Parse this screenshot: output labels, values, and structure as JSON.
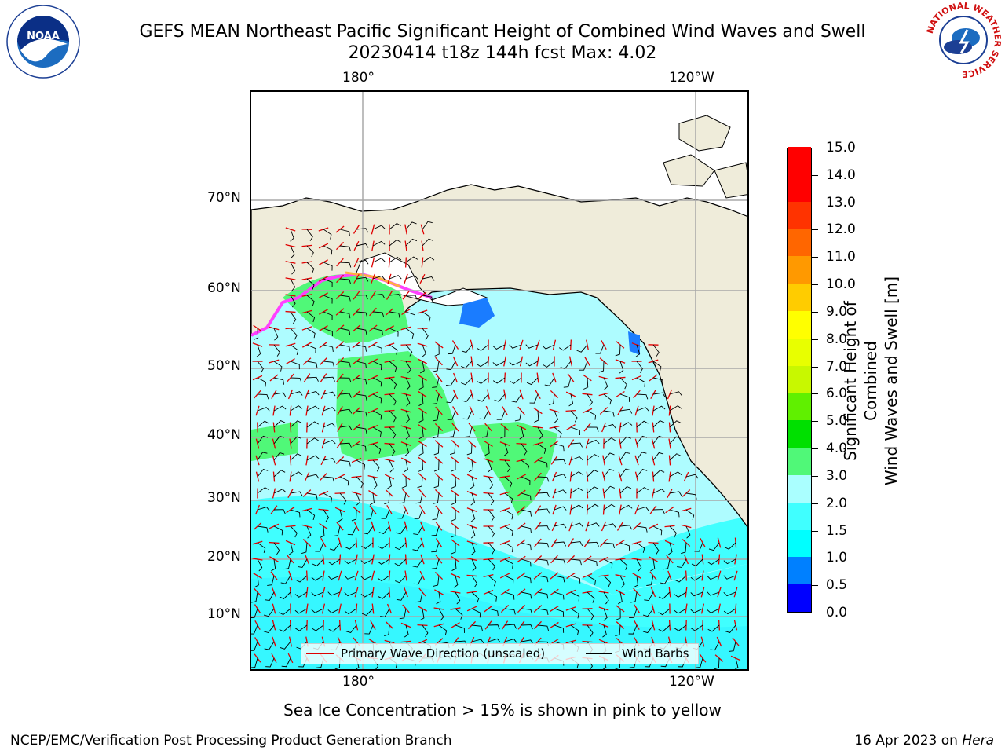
{
  "title": {
    "line1": "GEFS MEAN Northeast Pacific Significant Height of Combined Wind Waves and Swell",
    "line2": "20230414 t18z 144h fcst   Max: 4.02"
  },
  "logos": {
    "left": "NOAA",
    "right_ring_text": "NATIONAL WEATHER SERVICE"
  },
  "axes": {
    "top_ticks": [
      "180°",
      "120°W"
    ],
    "bottom_ticks": [
      "180°",
      "120°W"
    ],
    "left_ticks": [
      "70°N",
      "60°N",
      "50°N",
      "40°N",
      "30°N",
      "20°N",
      "10°N"
    ]
  },
  "legend": {
    "wave": "Primary Wave Direction (unscaled)",
    "wind": "Wind Barbs"
  },
  "colorbar": {
    "label_line1": "Significant Height of Combined",
    "label_line2": "Wind Waves and Swell [m]",
    "ticks": [
      "0.0",
      "0.5",
      "1.0",
      "1.5",
      "2.0",
      "3.0",
      "4.0",
      "5.0",
      "6.0",
      "7.0",
      "8.0",
      "9.0",
      "10.0",
      "11.0",
      "12.0",
      "13.0",
      "14.0",
      "15.0"
    ],
    "colors": [
      "#0000ff",
      "#0080ff",
      "#00ffff",
      "#40ffff",
      "#aaffff",
      "#50f878",
      "#00e000",
      "#60f000",
      "#c8f800",
      "#e8ff00",
      "#ffff00",
      "#ffcc00",
      "#ff9900",
      "#ff6600",
      "#ff3300",
      "#ff0000",
      "#ff0000"
    ]
  },
  "footer": {
    "ice_note": "Sea Ice Concentration > 15% is shown in pink to yellow",
    "left": "NCEP/EMC/Verification Post Processing Product Generation Branch",
    "right_date": "16 Apr 2023 on ",
    "right_host": "Hera"
  },
  "colors": {
    "land": "#efecda",
    "ocean_low": "#aefcff",
    "ocean_mid": "#40ffff",
    "ocean_high": "#50f878",
    "wave_arrow": "#e00000",
    "wind_barb": "#000000"
  }
}
